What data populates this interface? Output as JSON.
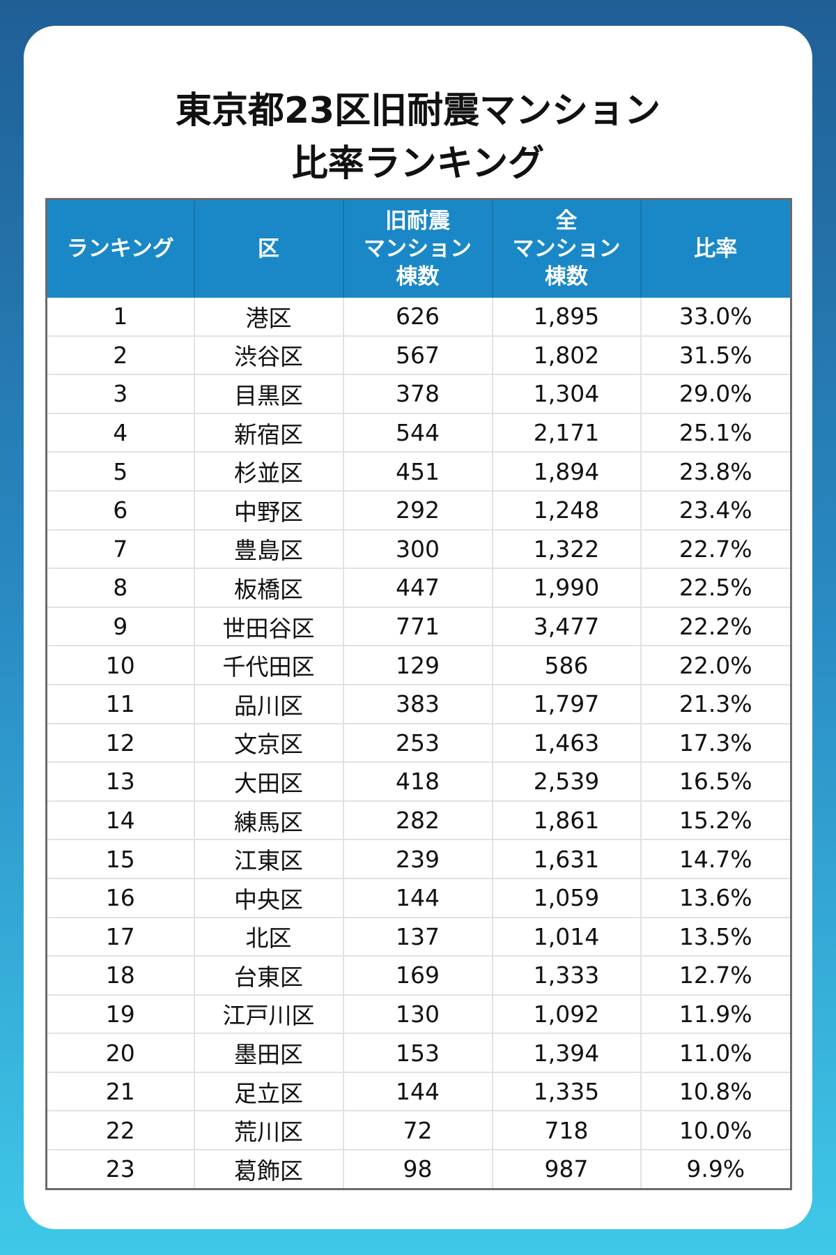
{
  "title": [
    "東京都23区旧耐震マンション",
    "比率ランキング"
  ],
  "table": {
    "headers": [
      [
        "ランキング"
      ],
      [
        "区"
      ],
      [
        "旧耐震",
        "マンション",
        "棟数"
      ],
      [
        "全",
        "マンション",
        "棟数"
      ],
      [
        "比率"
      ]
    ],
    "rows": [
      [
        "1",
        "港区",
        "626",
        "1,895",
        "33.0%"
      ],
      [
        "2",
        "渋谷区",
        "567",
        "1,802",
        "31.5%"
      ],
      [
        "3",
        "目黒区",
        "378",
        "1,304",
        "29.0%"
      ],
      [
        "4",
        "新宿区",
        "544",
        "2,171",
        "25.1%"
      ],
      [
        "5",
        "杉並区",
        "451",
        "1,894",
        "23.8%"
      ],
      [
        "6",
        "中野区",
        "292",
        "1,248",
        "23.4%"
      ],
      [
        "7",
        "豊島区",
        "300",
        "1,322",
        "22.7%"
      ],
      [
        "8",
        "板橋区",
        "447",
        "1,990",
        "22.5%"
      ],
      [
        "9",
        "世田谷区",
        "771",
        "3,477",
        "22.2%"
      ],
      [
        "10",
        "千代田区",
        "129",
        "586",
        "22.0%"
      ],
      [
        "11",
        "品川区",
        "383",
        "1,797",
        "21.3%"
      ],
      [
        "12",
        "文京区",
        "253",
        "1,463",
        "17.3%"
      ],
      [
        "13",
        "大田区",
        "418",
        "2,539",
        "16.5%"
      ],
      [
        "14",
        "練馬区",
        "282",
        "1,861",
        "15.2%"
      ],
      [
        "15",
        "江東区",
        "239",
        "1,631",
        "14.7%"
      ],
      [
        "16",
        "中央区",
        "144",
        "1,059",
        "13.6%"
      ],
      [
        "17",
        "北区",
        "137",
        "1,014",
        "13.5%"
      ],
      [
        "18",
        "台東区",
        "169",
        "1,333",
        "12.7%"
      ],
      [
        "19",
        "江戸川区",
        "130",
        "1,092",
        "11.9%"
      ],
      [
        "20",
        "墨田区",
        "153",
        "1,394",
        "11.0%"
      ],
      [
        "21",
        "足立区",
        "144",
        "1,335",
        "10.8%"
      ],
      [
        "22",
        "荒川区",
        "72",
        "718",
        "10.0%"
      ],
      [
        "23",
        "葛飾区",
        "98",
        "987",
        "9.9%"
      ]
    ]
  }
}
